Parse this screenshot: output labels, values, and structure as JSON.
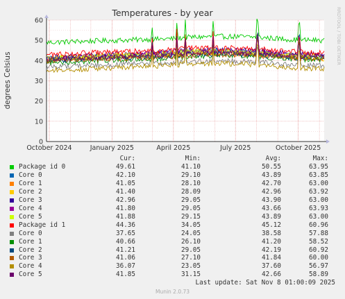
{
  "chart_data": {
    "type": "line",
    "title": "Temperatures - by year",
    "ylabel": "degrees Celsius",
    "watermark": "RRDTOOL / TOBI OETIKER",
    "ylim": [
      0,
      60
    ],
    "yticks": [
      "0",
      "10",
      "20",
      "30",
      "40",
      "50",
      "60"
    ],
    "x_tick_labels": [
      "October 2024",
      "January 2025",
      "April 2025",
      "July 2025",
      "October 2025"
    ],
    "x_tick_dates": [
      "2024-10-01",
      "2025-01-01",
      "2025-04-01",
      "2025-07-01",
      "2025-10-01"
    ],
    "x_range": [
      "2024-09-27",
      "2025-11-08"
    ],
    "grid": true,
    "background": "#ffffff",
    "legend_columns": [
      "Cur:",
      "Min:",
      "Avg:",
      "Max:"
    ],
    "series": [
      {
        "name": "Package id 0",
        "color": "#00cc00",
        "cur": "49.61",
        "min": "41.10",
        "avg": "50.55",
        "max": "63.95",
        "start": 49,
        "mid": 51,
        "end": 50
      },
      {
        "name": "Core 0",
        "color": "#0066b3",
        "cur": "42.10",
        "min": "29.10",
        "avg": "43.89",
        "max": "63.85",
        "start": 41,
        "mid": 44,
        "end": 42
      },
      {
        "name": "Core 1",
        "color": "#ff8000",
        "cur": "41.05",
        "min": "28.10",
        "avg": "42.70",
        "max": "63.00",
        "start": 40,
        "mid": 43,
        "end": 41
      },
      {
        "name": "Core 2",
        "color": "#ffcc00",
        "cur": "41.40",
        "min": "28.09",
        "avg": "42.96",
        "max": "63.92",
        "start": 41,
        "mid": 43.5,
        "end": 41
      },
      {
        "name": "Core 3",
        "color": "#330099",
        "cur": "42.96",
        "min": "29.05",
        "avg": "43.90",
        "max": "63.00",
        "start": 41.5,
        "mid": 44.5,
        "end": 43
      },
      {
        "name": "Core 4",
        "color": "#990099",
        "cur": "41.80",
        "min": "29.05",
        "avg": "43.66",
        "max": "63.93",
        "start": 41,
        "mid": 44,
        "end": 42
      },
      {
        "name": "Core 5",
        "color": "#ccff00",
        "cur": "41.88",
        "min": "29.15",
        "avg": "43.89",
        "max": "63.00",
        "start": 41,
        "mid": 44,
        "end": 42
      },
      {
        "name": "Package id 1",
        "color": "#ff0000",
        "cur": "44.36",
        "min": "34.05",
        "avg": "45.12",
        "max": "60.96",
        "start": 43,
        "mid": 45.5,
        "end": 44
      },
      {
        "name": "Core 0",
        "color": "#808080",
        "cur": "37.65",
        "min": "24.05",
        "avg": "38.58",
        "max": "57.88",
        "start": 37,
        "mid": 39,
        "end": 37.5
      },
      {
        "name": "Core 1",
        "color": "#008f00",
        "cur": "40.66",
        "min": "26.10",
        "avg": "41.20",
        "max": "58.52",
        "start": 39,
        "mid": 41.5,
        "end": 40.5
      },
      {
        "name": "Core 2",
        "color": "#00487d",
        "cur": "41.21",
        "min": "29.05",
        "avg": "42.19",
        "max": "60.92",
        "start": 40,
        "mid": 42.5,
        "end": 41
      },
      {
        "name": "Core 3",
        "color": "#b35a00",
        "cur": "41.06",
        "min": "27.10",
        "avg": "41.84",
        "max": "60.00",
        "start": 40,
        "mid": 42,
        "end": 41
      },
      {
        "name": "Core 4",
        "color": "#b38f00",
        "cur": "36.07",
        "min": "23.05",
        "avg": "37.60",
        "max": "56.97",
        "start": 35,
        "mid": 38,
        "end": 36
      },
      {
        "name": "Core 5",
        "color": "#6b006b",
        "cur": "41.85",
        "min": "31.15",
        "avg": "42.66",
        "max": "58.89",
        "start": 40.5,
        "mid": 43,
        "end": 42
      }
    ]
  },
  "footer": {
    "last_update": "Last update: Sat Nov  8 01:00:09 2025",
    "munin_version": "Munin 2.0.73"
  }
}
